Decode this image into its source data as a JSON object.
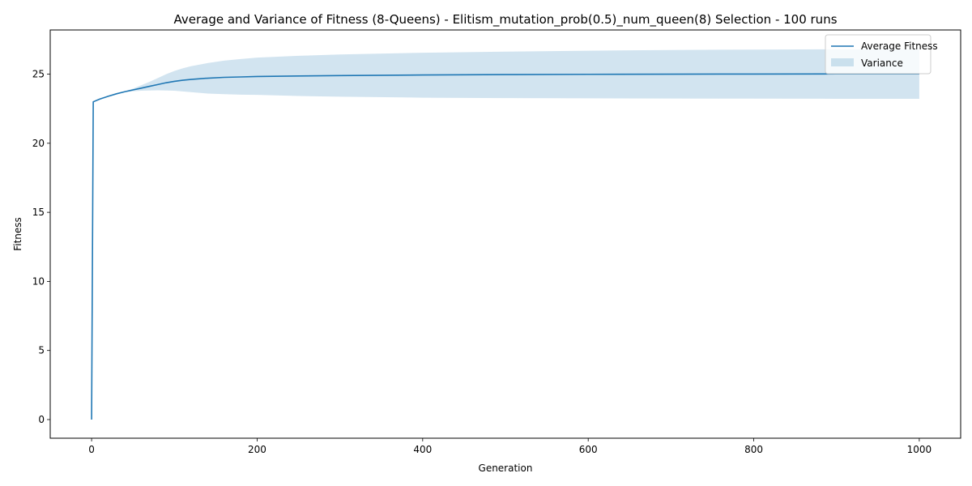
{
  "chart_data": {
    "type": "line",
    "title": "Average and Variance of Fitness (8-Queens) - Elitism_mutation_prob(0.5)_num_queen(8) Selection - 100 runs",
    "xlabel": "Generation",
    "ylabel": "Fitness",
    "xlim": [
      -50,
      1050
    ],
    "ylim": [
      -1.35,
      28.2
    ],
    "xticks": [
      0,
      200,
      400,
      600,
      800,
      1000
    ],
    "yticks": [
      0,
      5,
      10,
      15,
      20,
      25
    ],
    "grid": false,
    "legend_position": "top-right",
    "colors": {
      "line": "#1f77b4",
      "band": "#1f77b4"
    },
    "series": [
      {
        "name": "Average Fitness",
        "x": [
          0,
          2,
          10,
          20,
          30,
          40,
          50,
          60,
          70,
          80,
          90,
          100,
          110,
          120,
          140,
          160,
          180,
          200,
          250,
          300,
          400,
          500,
          600,
          700,
          800,
          900,
          1000
        ],
        "y": [
          0,
          23.0,
          23.2,
          23.4,
          23.58,
          23.73,
          23.86,
          23.99,
          24.12,
          24.25,
          24.38,
          24.48,
          24.56,
          24.62,
          24.71,
          24.77,
          24.8,
          24.83,
          24.87,
          24.9,
          24.94,
          24.97,
          24.99,
          25.0,
          25.01,
          25.02,
          25.02
        ]
      },
      {
        "name": "Variance",
        "x": [
          0,
          2,
          10,
          20,
          30,
          40,
          50,
          60,
          70,
          80,
          90,
          100,
          110,
          120,
          140,
          160,
          180,
          200,
          250,
          300,
          400,
          500,
          600,
          700,
          800,
          900,
          1000
        ],
        "lower": [
          0,
          23.0,
          23.2,
          23.4,
          23.58,
          23.7,
          23.76,
          23.8,
          23.82,
          23.83,
          23.82,
          23.8,
          23.75,
          23.7,
          23.6,
          23.55,
          23.52,
          23.5,
          23.42,
          23.37,
          23.3,
          23.27,
          23.25,
          23.24,
          23.23,
          23.22,
          23.22
        ],
        "upper": [
          0,
          23.0,
          23.2,
          23.4,
          23.58,
          23.76,
          23.96,
          24.2,
          24.45,
          24.72,
          25.0,
          25.23,
          25.42,
          25.58,
          25.8,
          25.98,
          26.1,
          26.2,
          26.33,
          26.43,
          26.55,
          26.63,
          26.7,
          26.75,
          26.78,
          26.8,
          26.8
        ]
      }
    ]
  }
}
